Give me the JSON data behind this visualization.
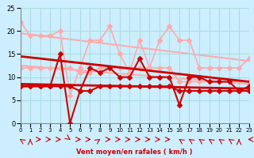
{
  "bg_color": "#cceeff",
  "grid_color": "#aadddd",
  "xlabel": "Vent moyen/en rafales ( km/h )",
  "xlim": [
    0,
    23
  ],
  "ylim": [
    0,
    25
  ],
  "yticks": [
    0,
    5,
    10,
    15,
    20,
    25
  ],
  "xticks": [
    0,
    1,
    2,
    3,
    4,
    5,
    6,
    7,
    8,
    9,
    10,
    11,
    12,
    13,
    14,
    15,
    16,
    17,
    18,
    19,
    20,
    21,
    22,
    23
  ],
  "series": [
    {
      "name": "rafales_upper",
      "x": [
        0,
        1,
        2,
        3,
        4,
        5,
        6,
        7,
        8,
        9,
        10,
        11,
        12,
        13,
        14,
        15,
        16,
        17,
        18,
        19,
        20,
        21,
        22,
        23
      ],
      "y": [
        22,
        19,
        19,
        19,
        20,
        6,
        12,
        18,
        18,
        21,
        15,
        11,
        18,
        12,
        18,
        21,
        18,
        18,
        12,
        12,
        12,
        12,
        12,
        14
      ],
      "color": "#ffaaaa",
      "lw": 1.2,
      "marker": "D",
      "ms": 3,
      "zorder": 2
    },
    {
      "name": "rafales_lower",
      "x": [
        0,
        1,
        2,
        3,
        4,
        5,
        6,
        7,
        8,
        9,
        10,
        11,
        12,
        13,
        14,
        15,
        16,
        17,
        18,
        19,
        20,
        21,
        22,
        23
      ],
      "y": [
        12,
        12,
        12,
        12,
        12,
        12,
        11,
        11,
        12,
        12,
        12,
        12,
        12,
        12,
        12,
        12,
        9,
        9,
        9,
        9,
        9,
        9,
        9,
        9
      ],
      "color": "#ffaaaa",
      "lw": 1.2,
      "marker": "D",
      "ms": 3,
      "zorder": 2
    },
    {
      "name": "vent_upper_trend",
      "x": [
        0,
        23
      ],
      "y": [
        19.5,
        13.5
      ],
      "color": "#ffaaaa",
      "lw": 1.5,
      "marker": null,
      "ms": 0,
      "zorder": 1
    },
    {
      "name": "vent_lower_trend",
      "x": [
        0,
        23
      ],
      "y": [
        12.5,
        8.5
      ],
      "color": "#ffaaaa",
      "lw": 1.5,
      "marker": null,
      "ms": 0,
      "zorder": 1
    },
    {
      "name": "vent_moyen_upper",
      "x": [
        0,
        1,
        2,
        3,
        4,
        5,
        6,
        7,
        8,
        9,
        10,
        11,
        12,
        13,
        14,
        15,
        16,
        17,
        18,
        19,
        20,
        21,
        22,
        23
      ],
      "y": [
        8,
        8,
        8,
        8,
        15,
        0,
        7,
        12,
        11,
        12,
        10,
        10,
        14,
        10,
        10,
        10,
        4,
        10,
        10,
        9,
        9,
        9,
        7,
        8
      ],
      "color": "#cc0000",
      "lw": 1.5,
      "marker": "D",
      "ms": 3,
      "zorder": 4
    },
    {
      "name": "vent_moyen_lower",
      "x": [
        0,
        1,
        2,
        3,
        4,
        5,
        6,
        7,
        8,
        9,
        10,
        11,
        12,
        13,
        14,
        15,
        16,
        17,
        18,
        19,
        20,
        21,
        22,
        23
      ],
      "y": [
        8,
        8,
        8,
        8,
        8,
        8,
        7,
        7,
        8,
        8,
        8,
        8,
        8,
        8,
        8,
        8,
        7,
        7,
        7,
        7,
        7,
        7,
        7,
        7
      ],
      "color": "#cc0000",
      "lw": 1.5,
      "marker": "D",
      "ms": 3,
      "zorder": 4
    },
    {
      "name": "moyen_upper_trend",
      "x": [
        0,
        23
      ],
      "y": [
        14.5,
        9.0
      ],
      "color": "#cc0000",
      "lw": 2.0,
      "marker": null,
      "ms": 0,
      "zorder": 3
    },
    {
      "name": "moyen_lower_trend",
      "x": [
        0,
        23
      ],
      "y": [
        8.5,
        7.5
      ],
      "color": "#cc0000",
      "lw": 2.0,
      "marker": null,
      "ms": 0,
      "zorder": 3
    }
  ],
  "wind_dirs": [
    "up-left",
    "up",
    "right",
    "right",
    "right",
    "down-right",
    "right",
    "right",
    "up-right",
    "right",
    "right",
    "right",
    "right",
    "right",
    "right",
    "right",
    "up-left",
    "up-left",
    "up-left",
    "up-left",
    "up-left",
    "up-left",
    "up",
    "left"
  ]
}
